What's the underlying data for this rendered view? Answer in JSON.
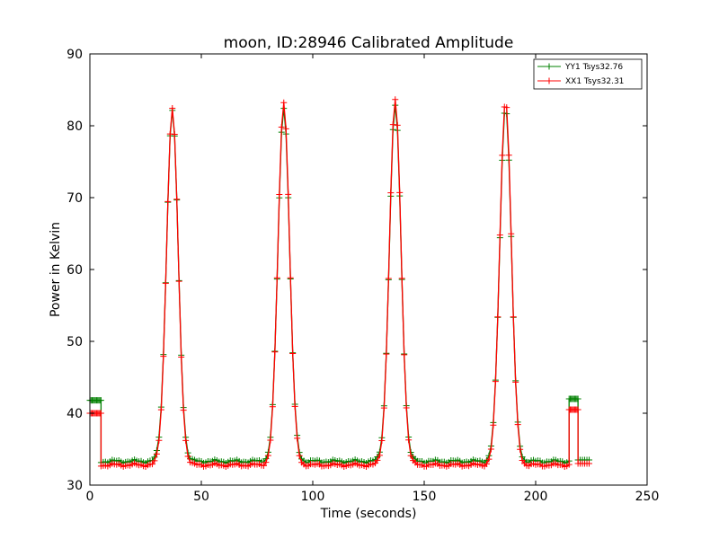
{
  "chart_data": {
    "type": "line",
    "title": "moon, ID:28946 Calibrated Amplitude",
    "xlabel": "Time (seconds)",
    "ylabel": "Power in Kelvin",
    "xlim": [
      0,
      250
    ],
    "ylim": [
      30,
      90
    ],
    "xticks": [
      "0",
      "50",
      "100",
      "150",
      "200",
      "250"
    ],
    "yticks": [
      "30",
      "40",
      "50",
      "60",
      "70",
      "80",
      "90"
    ],
    "grid": false,
    "legend_position": "top-right",
    "marker": "+",
    "sample_interval": 1,
    "series": [
      {
        "name": "YY1 Tsys32.76",
        "color": "#008000",
        "baseline": 33.3,
        "peaks": [
          {
            "center": 37,
            "height": 82.0,
            "width": 2.6
          },
          {
            "center": 87,
            "height": 82.6,
            "width": 2.6
          },
          {
            "center": 137,
            "height": 82.8,
            "width": 2.6
          },
          {
            "center": 186.5,
            "height": 82.8,
            "width": 2.6
          }
        ],
        "segments": [
          {
            "x": [
              0,
              5
            ],
            "y": 41.8
          },
          {
            "x": [
              5,
              222
            ],
            "y": "base"
          },
          {
            "x": [
              215,
              219
            ],
            "y": 42.0
          },
          {
            "x": [
              219,
              224
            ],
            "y": 33.5
          }
        ]
      },
      {
        "name": "XX1 Tsys32.31",
        "color": "#ff0000",
        "baseline": 32.8,
        "peaks": [
          {
            "center": 37,
            "height": 82.3,
            "width": 2.6
          },
          {
            "center": 87,
            "height": 83.4,
            "width": 2.6
          },
          {
            "center": 137,
            "height": 83.6,
            "width": 2.6
          },
          {
            "center": 186.5,
            "height": 83.7,
            "width": 2.6
          }
        ],
        "segments": [
          {
            "x": [
              0,
              5
            ],
            "y": 40.0
          },
          {
            "x": [
              5,
              222
            ],
            "y": "base"
          },
          {
            "x": [
              215,
              219
            ],
            "y": 40.5
          },
          {
            "x": [
              219,
              224
            ],
            "y": 33.0
          }
        ]
      }
    ]
  }
}
